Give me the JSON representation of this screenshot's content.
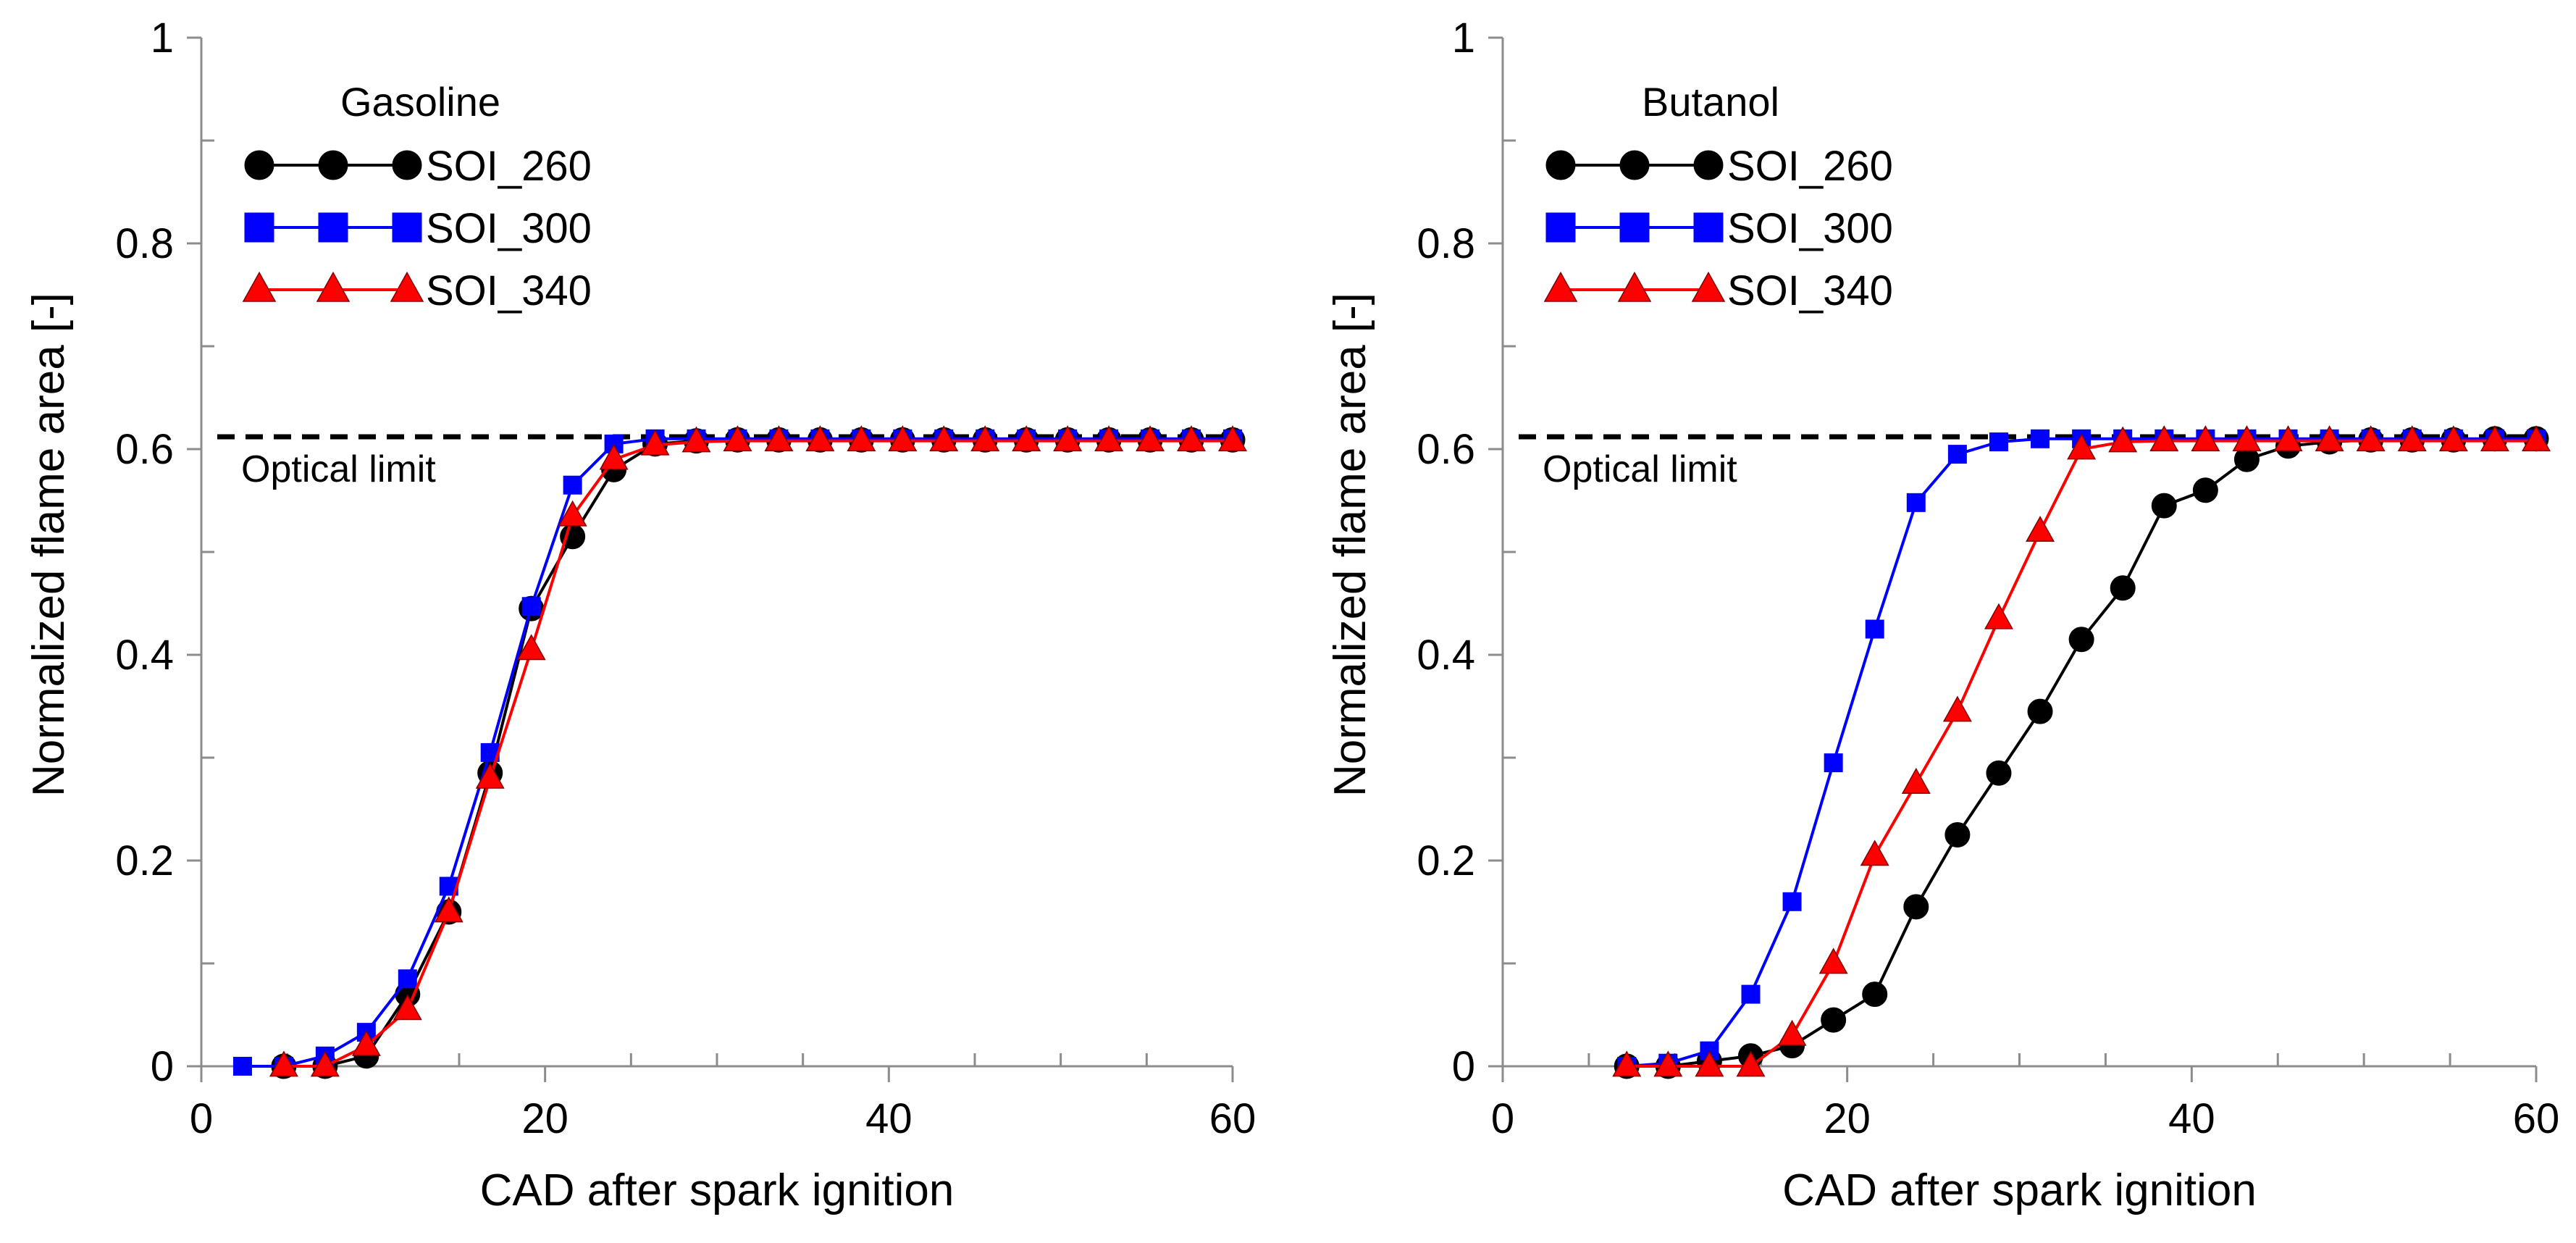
{
  "chart_data": [
    {
      "type": "line",
      "fuel_title": "Gasoline",
      "xlabel": "CAD after spark ignition",
      "ylabel": "Normalized flame area [-]",
      "xlim": [
        0,
        60
      ],
      "ylim": [
        0,
        1
      ],
      "x_ticks": [
        0,
        20,
        40,
        60
      ],
      "x_tick_labels": [
        "0",
        "20",
        "40",
        "60"
      ],
      "y_ticks": [
        0,
        0.2,
        0.4,
        0.6,
        0.8,
        1
      ],
      "y_tick_labels": [
        "0",
        "0.2",
        "0.4",
        "0.6",
        "0.8",
        "1"
      ],
      "grid": false,
      "legend_position": "top-left",
      "optical_limit": {
        "label": "Optical limit",
        "value": 0.612
      },
      "series": [
        {
          "name": "SOI_260",
          "color": "#000000",
          "marker": "circle",
          "x": [
            4.8,
            7.2,
            9.6,
            12.0,
            14.4,
            16.8,
            19.2,
            21.6,
            24.0,
            26.4,
            28.8,
            31.2,
            33.6,
            36.0,
            38.4,
            40.8,
            43.2,
            45.6,
            48.0,
            50.4,
            52.8,
            55.2,
            57.6,
            60.0
          ],
          "y": [
            0.0,
            0.0,
            0.01,
            0.07,
            0.15,
            0.285,
            0.445,
            0.515,
            0.58,
            0.605,
            0.608,
            0.609,
            0.609,
            0.609,
            0.609,
            0.609,
            0.609,
            0.609,
            0.609,
            0.609,
            0.609,
            0.609,
            0.609,
            0.609
          ]
        },
        {
          "name": "SOI_300",
          "color": "#0000ff",
          "marker": "square",
          "x": [
            2.4,
            4.8,
            7.2,
            9.6,
            12.0,
            14.4,
            16.8,
            19.2,
            21.6,
            24.0,
            26.4,
            28.8,
            31.2,
            33.6,
            36.0,
            38.4,
            40.8,
            43.2,
            45.6,
            48.0,
            50.4,
            52.8,
            55.2,
            57.6,
            60.0
          ],
          "y": [
            0.0,
            0.0,
            0.01,
            0.033,
            0.085,
            0.175,
            0.305,
            0.447,
            0.565,
            0.605,
            0.61,
            0.61,
            0.61,
            0.61,
            0.61,
            0.61,
            0.61,
            0.61,
            0.61,
            0.61,
            0.61,
            0.61,
            0.61,
            0.61,
            0.61
          ]
        },
        {
          "name": "SOI_340",
          "color": "#ff0000",
          "marker": "triangle",
          "x": [
            4.8,
            7.2,
            9.6,
            12.0,
            14.4,
            16.8,
            19.2,
            21.6,
            24.0,
            26.4,
            28.8,
            31.2,
            33.6,
            36.0,
            38.4,
            40.8,
            43.2,
            45.6,
            48.0,
            50.4,
            52.8,
            55.2,
            57.6,
            60.0
          ],
          "y": [
            0.0,
            0.0,
            0.02,
            0.055,
            0.15,
            0.28,
            0.405,
            0.535,
            0.59,
            0.604,
            0.607,
            0.608,
            0.608,
            0.608,
            0.608,
            0.608,
            0.608,
            0.608,
            0.608,
            0.608,
            0.608,
            0.608,
            0.608,
            0.608
          ]
        }
      ]
    },
    {
      "type": "line",
      "fuel_title": "Butanol",
      "xlabel": "CAD after spark ignition",
      "ylabel": "Normalized flame area [-]",
      "xlim": [
        0,
        60
      ],
      "ylim": [
        0,
        1
      ],
      "x_ticks": [
        0,
        20,
        40,
        60
      ],
      "x_tick_labels": [
        "0",
        "20",
        "40",
        "60"
      ],
      "y_ticks": [
        0,
        0.2,
        0.4,
        0.6,
        0.8,
        1
      ],
      "y_tick_labels": [
        "0",
        "0.2",
        "0.4",
        "0.6",
        "0.8",
        "1"
      ],
      "grid": false,
      "legend_position": "top-left",
      "optical_limit": {
        "label": "Optical limit",
        "value": 0.612
      },
      "series": [
        {
          "name": "SOI_260",
          "color": "#000000",
          "marker": "circle",
          "x": [
            7.2,
            9.6,
            12.0,
            14.4,
            16.8,
            19.2,
            21.6,
            24.0,
            26.4,
            28.8,
            31.2,
            33.6,
            36.0,
            38.4,
            40.8,
            43.2,
            45.6,
            48.0,
            50.4,
            52.8,
            55.2,
            57.6,
            60.0
          ],
          "y": [
            0.0,
            0.0,
            0.005,
            0.01,
            0.02,
            0.045,
            0.07,
            0.155,
            0.225,
            0.285,
            0.345,
            0.415,
            0.465,
            0.545,
            0.56,
            0.59,
            0.603,
            0.607,
            0.609,
            0.609,
            0.609,
            0.61,
            0.61
          ]
        },
        {
          "name": "SOI_300",
          "color": "#0000ff",
          "marker": "square",
          "x": [
            7.2,
            9.6,
            12.0,
            14.4,
            16.8,
            19.2,
            21.6,
            24.0,
            26.4,
            28.8,
            31.2,
            33.6,
            36.0,
            38.4,
            40.8,
            43.2,
            45.6,
            48.0,
            50.4,
            52.8,
            55.2,
            57.6,
            60.0
          ],
          "y": [
            0.0,
            0.003,
            0.015,
            0.07,
            0.16,
            0.295,
            0.425,
            0.548,
            0.595,
            0.607,
            0.61,
            0.61,
            0.61,
            0.61,
            0.61,
            0.61,
            0.61,
            0.61,
            0.61,
            0.61,
            0.61,
            0.61,
            0.61
          ]
        },
        {
          "name": "SOI_340",
          "color": "#ff0000",
          "marker": "triangle",
          "x": [
            7.2,
            9.6,
            12.0,
            14.4,
            16.8,
            19.2,
            21.6,
            24.0,
            26.4,
            28.8,
            31.2,
            33.6,
            36.0,
            38.4,
            40.8,
            43.2,
            45.6,
            48.0,
            50.4,
            52.8,
            55.2,
            57.6,
            60.0
          ],
          "y": [
            0.0,
            0.0,
            0.0,
            0.0,
            0.03,
            0.1,
            0.205,
            0.275,
            0.345,
            0.435,
            0.52,
            0.6,
            0.607,
            0.608,
            0.608,
            0.608,
            0.608,
            0.608,
            0.608,
            0.608,
            0.608,
            0.608,
            0.608
          ]
        }
      ]
    }
  ]
}
